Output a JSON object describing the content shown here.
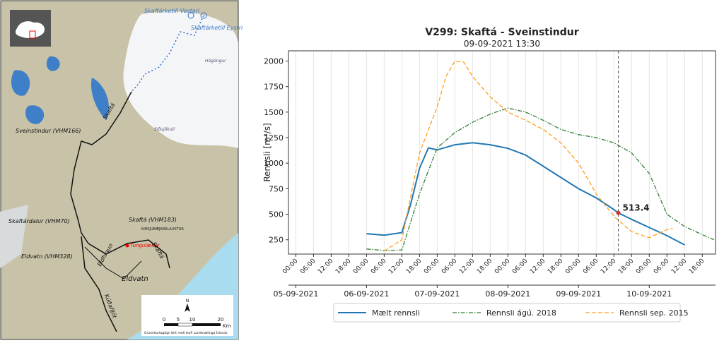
{
  "map": {
    "labels": {
      "vestari": "Skaftárketill Vestari",
      "eystri": "Skaftárketill Eystri",
      "sveinstindur": "Sveinstindur (VHM166)",
      "skafta": "Skaftá",
      "skaftardalur": "Skaftárdalur (VHM70)",
      "skafta183": "Skaftá (VHM183)",
      "klaustur": "KIRKJUBÆJARKLAUSTUR",
      "tungulaekur": "Tungulækur",
      "eldhraun": "Eldhraun",
      "eldvatn328": "Eldvatn (VHM328)",
      "eldvatn": "Eldvatn",
      "kudafljot": "Kúðafljót",
      "sidujokull": "Síðujökull",
      "hagongur": "Hágöngur",
      "skafta2": "Skaftá"
    },
    "scale": {
      "ticks": [
        "0",
        "5",
        "10",
        "20"
      ],
      "unit": "Km",
      "north": "N",
      "credit": "Grunnkortagögn birt með leyfi Landmælinga Íslands"
    }
  },
  "chart_data": {
    "type": "line",
    "title": "V299: Skaftá - Sveinstindur",
    "subtitle": "09-09-2021 13:30",
    "ylabel": "Rennsli [m³/s]",
    "ylim": [
      110,
      2100
    ],
    "yticks": [
      250,
      500,
      750,
      1000,
      1250,
      1500,
      1750,
      2000
    ],
    "xlim": [
      "2021-09-04 21:30",
      "2021-09-10 22:30"
    ],
    "grid": "x",
    "xticks": [
      {
        "value": "2021-09-05 00:00",
        "label": "00:00"
      },
      {
        "value": "2021-09-05 06:00",
        "label": "06:00"
      },
      {
        "value": "2021-09-05 12:00",
        "label": "12:00"
      },
      {
        "value": "2021-09-05 18:00",
        "label": "18:00"
      },
      {
        "value": "2021-09-06 00:00",
        "label": "00:00"
      },
      {
        "value": "2021-09-06 06:00",
        "label": "06:00"
      },
      {
        "value": "2021-09-06 12:00",
        "label": "12:00"
      },
      {
        "value": "2021-09-06 18:00",
        "label": "18:00"
      },
      {
        "value": "2021-09-07 00:00",
        "label": "00:00"
      },
      {
        "value": "2021-09-07 06:00",
        "label": "06:00"
      },
      {
        "value": "2021-09-07 12:00",
        "label": "12:00"
      },
      {
        "value": "2021-09-07 18:00",
        "label": "18:00"
      },
      {
        "value": "2021-09-08 00:00",
        "label": "00:00"
      },
      {
        "value": "2021-09-08 06:00",
        "label": "06:00"
      },
      {
        "value": "2021-09-08 12:00",
        "label": "12:00"
      },
      {
        "value": "2021-09-08 18:00",
        "label": "18:00"
      },
      {
        "value": "2021-09-09 00:00",
        "label": "00:00"
      },
      {
        "value": "2021-09-09 06:00",
        "label": "06:00"
      },
      {
        "value": "2021-09-09 12:00",
        "label": "12:00"
      },
      {
        "value": "2021-09-09 18:00",
        "label": "18:00"
      },
      {
        "value": "2021-09-10 00:00",
        "label": "00:00"
      },
      {
        "value": "2021-09-10 06:00",
        "label": "06:00"
      },
      {
        "value": "2021-09-10 12:00",
        "label": "12:00"
      },
      {
        "value": "2021-09-10 18:00",
        "label": "18:00"
      }
    ],
    "date_ticks": [
      {
        "value": "2021-09-05 00:00",
        "label": "05-09-2021"
      },
      {
        "value": "2021-09-06 00:00",
        "label": "06-09-2021"
      },
      {
        "value": "2021-09-07 00:00",
        "label": "07-09-2021"
      },
      {
        "value": "2021-09-08 00:00",
        "label": "08-09-2021"
      },
      {
        "value": "2021-09-09 00:00",
        "label": "09-09-2021"
      },
      {
        "value": "2021-09-10 00:00",
        "label": "10-09-2021"
      }
    ],
    "series": [
      {
        "name": "Mælt rennsli",
        "color": "#1f77b4",
        "dash": "solid",
        "x": [
          "2021-09-06 00:00",
          "2021-09-06 06:00",
          "2021-09-06 12:00",
          "2021-09-06 15:00",
          "2021-09-06 18:00",
          "2021-09-06 21:00",
          "2021-09-07 00:00",
          "2021-09-07 06:00",
          "2021-09-07 12:00",
          "2021-09-07 18:00",
          "2021-09-08 00:00",
          "2021-09-08 06:00",
          "2021-09-08 12:00",
          "2021-09-08 18:00",
          "2021-09-09 00:00",
          "2021-09-09 06:00",
          "2021-09-09 12:00",
          "2021-09-09 13:30",
          "2021-09-09 18:00",
          "2021-09-10 00:00",
          "2021-09-10 06:00",
          "2021-09-10 12:00"
        ],
        "values": [
          310,
          295,
          320,
          600,
          950,
          1150,
          1130,
          1180,
          1200,
          1180,
          1145,
          1080,
          970,
          860,
          750,
          660,
          545,
          513.4,
          450,
          370,
          290,
          200
        ]
      },
      {
        "name": "Rennsli ágú. 2018",
        "color": "#2e7d32",
        "dash": "dashdot",
        "x": [
          "2021-09-06 00:00",
          "2021-09-06 06:00",
          "2021-09-06 12:00",
          "2021-09-06 18:00",
          "2021-09-07 00:00",
          "2021-09-07 06:00",
          "2021-09-07 12:00",
          "2021-09-07 18:00",
          "2021-09-08 00:00",
          "2021-09-08 06:00",
          "2021-09-08 12:00",
          "2021-09-08 18:00",
          "2021-09-09 00:00",
          "2021-09-09 06:00",
          "2021-09-09 12:00",
          "2021-09-09 18:00",
          "2021-09-10 00:00",
          "2021-09-10 06:00",
          "2021-09-10 12:00",
          "2021-09-10 18:00",
          "2021-09-10 22:00"
        ],
        "values": [
          160,
          145,
          150,
          700,
          1150,
          1300,
          1400,
          1480,
          1540,
          1500,
          1420,
          1330,
          1280,
          1250,
          1200,
          1100,
          900,
          500,
          380,
          300,
          250
        ]
      },
      {
        "name": "Rennsli sep. 2015",
        "color": "#ff9f1c",
        "dash": "dashed",
        "x": [
          "2021-09-06 06:00",
          "2021-09-06 12:00",
          "2021-09-06 18:00",
          "2021-09-07 00:00",
          "2021-09-07 03:00",
          "2021-09-07 06:00",
          "2021-09-07 09:00",
          "2021-09-07 12:00",
          "2021-09-07 18:00",
          "2021-09-08 00:00",
          "2021-09-08 06:00",
          "2021-09-08 12:00",
          "2021-09-08 18:00",
          "2021-09-09 00:00",
          "2021-09-09 06:00",
          "2021-09-09 12:00",
          "2021-09-09 18:00",
          "2021-09-10 00:00",
          "2021-09-10 06:00",
          "2021-09-10 08:00"
        ],
        "values": [
          140,
          250,
          1100,
          1550,
          1850,
          2000,
          1990,
          1850,
          1650,
          1500,
          1420,
          1330,
          1200,
          1000,
          700,
          480,
          330,
          270,
          350,
          360
        ]
      }
    ],
    "annotation": {
      "x": "2021-09-09 13:30",
      "value": 513.4,
      "color": "#e03030"
    }
  }
}
